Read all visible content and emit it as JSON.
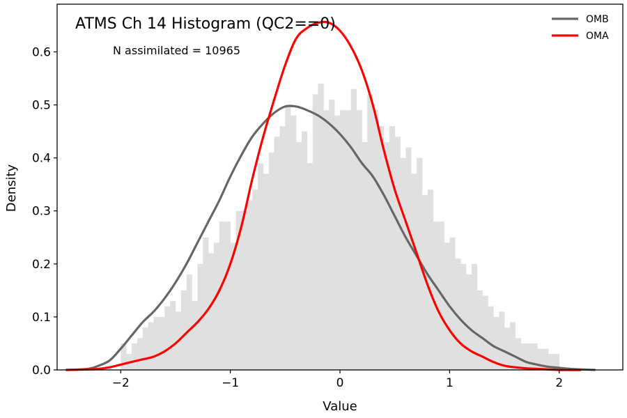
{
  "chart_data": {
    "type": "line",
    "title": "ATMS Ch 14 Histogram (QC2==0)",
    "annotation": "N assimilated = 10965",
    "xlabel": "Value",
    "ylabel": "Density",
    "xlim": [
      -2.58,
      2.58
    ],
    "ylim": [
      0,
      0.69
    ],
    "xticks": [
      -2,
      -1,
      0,
      1,
      2
    ],
    "xtick_labels": [
      "−2",
      "−1",
      "0",
      "1",
      "2"
    ],
    "yticks": [
      0.0,
      0.1,
      0.2,
      0.3,
      0.4,
      0.5,
      0.6
    ],
    "ytick_labels": [
      "0.0",
      "0.1",
      "0.2",
      "0.3",
      "0.4",
      "0.5",
      "0.6"
    ],
    "grid": false,
    "legend_position": "top-right",
    "histogram": {
      "color": "#e0e0e0",
      "bin_start": -2.0,
      "bin_width": 0.05,
      "values": [
        0.05,
        0.03,
        0.05,
        0.06,
        0.08,
        0.09,
        0.1,
        0.1,
        0.12,
        0.13,
        0.11,
        0.15,
        0.18,
        0.13,
        0.2,
        0.25,
        0.22,
        0.24,
        0.28,
        0.28,
        0.24,
        0.3,
        0.3,
        0.32,
        0.34,
        0.39,
        0.37,
        0.41,
        0.44,
        0.46,
        0.5,
        0.48,
        0.43,
        0.45,
        0.39,
        0.52,
        0.54,
        0.49,
        0.51,
        0.48,
        0.49,
        0.49,
        0.53,
        0.49,
        0.43,
        0.52,
        0.49,
        0.46,
        0.43,
        0.46,
        0.44,
        0.4,
        0.42,
        0.37,
        0.4,
        0.33,
        0.34,
        0.28,
        0.28,
        0.24,
        0.25,
        0.21,
        0.2,
        0.18,
        0.2,
        0.15,
        0.14,
        0.12,
        0.1,
        0.11,
        0.08,
        0.09,
        0.06,
        0.05,
        0.05,
        0.05,
        0.04,
        0.04,
        0.03,
        0.03
      ]
    },
    "series": [
      {
        "name": "OMB",
        "color": "#666666",
        "x": [
          -2.5,
          -2.3,
          -2.2,
          -2.1,
          -2.0,
          -1.9,
          -1.8,
          -1.7,
          -1.6,
          -1.5,
          -1.4,
          -1.3,
          -1.2,
          -1.1,
          -1.0,
          -0.9,
          -0.8,
          -0.7,
          -0.6,
          -0.5,
          -0.4,
          -0.3,
          -0.2,
          -0.1,
          0.0,
          0.1,
          0.2,
          0.3,
          0.4,
          0.5,
          0.6,
          0.7,
          0.8,
          0.9,
          1.0,
          1.1,
          1.2,
          1.3,
          1.4,
          1.5,
          1.6,
          1.7,
          1.8,
          1.9,
          2.0,
          2.1,
          2.2,
          2.33
        ],
        "y": [
          0.0,
          0.002,
          0.008,
          0.018,
          0.04,
          0.065,
          0.09,
          0.11,
          0.135,
          0.165,
          0.2,
          0.24,
          0.28,
          0.32,
          0.365,
          0.405,
          0.44,
          0.465,
          0.485,
          0.497,
          0.497,
          0.49,
          0.48,
          0.465,
          0.445,
          0.42,
          0.39,
          0.365,
          0.33,
          0.29,
          0.25,
          0.215,
          0.18,
          0.15,
          0.12,
          0.095,
          0.075,
          0.06,
          0.045,
          0.035,
          0.025,
          0.015,
          0.01,
          0.006,
          0.004,
          0.002,
          0.001,
          0.0
        ]
      },
      {
        "name": "OMA",
        "color": "#ff0000",
        "x": [
          -2.5,
          -2.3,
          -2.2,
          -2.1,
          -2.0,
          -1.9,
          -1.8,
          -1.7,
          -1.6,
          -1.5,
          -1.4,
          -1.3,
          -1.2,
          -1.1,
          -1.0,
          -0.9,
          -0.8,
          -0.7,
          -0.6,
          -0.5,
          -0.4,
          -0.3,
          -0.2,
          -0.1,
          0.0,
          0.1,
          0.2,
          0.3,
          0.4,
          0.5,
          0.6,
          0.7,
          0.8,
          0.9,
          1.0,
          1.1,
          1.2,
          1.3,
          1.4,
          1.5,
          1.6,
          1.7,
          1.8,
          1.9,
          2.0,
          2.1,
          2.2
        ],
        "y": [
          0.0,
          0.001,
          0.002,
          0.005,
          0.01,
          0.015,
          0.02,
          0.025,
          0.035,
          0.05,
          0.07,
          0.09,
          0.115,
          0.15,
          0.2,
          0.27,
          0.36,
          0.44,
          0.51,
          0.575,
          0.625,
          0.645,
          0.655,
          0.655,
          0.64,
          0.61,
          0.565,
          0.5,
          0.415,
          0.34,
          0.28,
          0.22,
          0.16,
          0.11,
          0.075,
          0.05,
          0.035,
          0.025,
          0.015,
          0.008,
          0.005,
          0.003,
          0.002,
          0.001,
          0.0,
          0.0,
          0.0
        ]
      }
    ]
  }
}
